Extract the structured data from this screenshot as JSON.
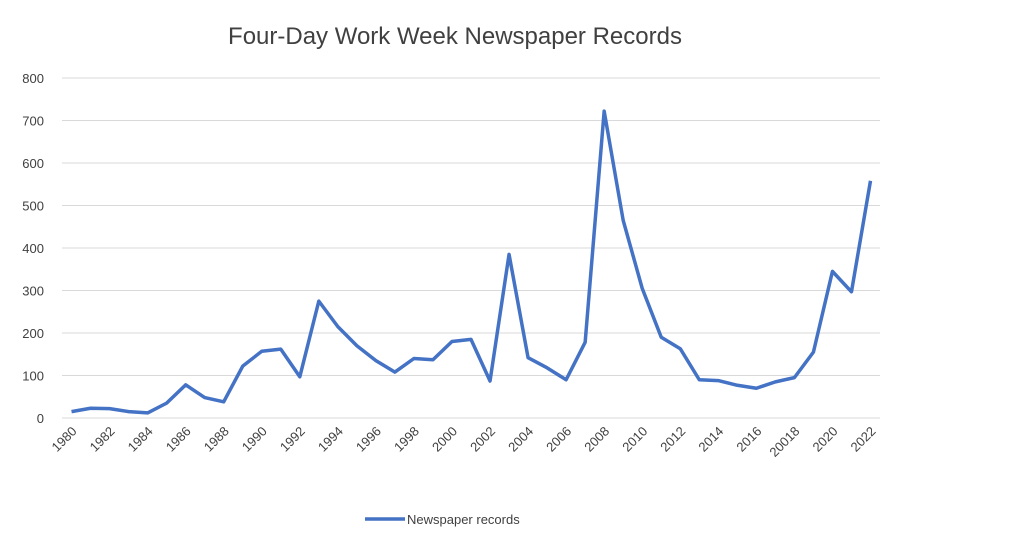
{
  "chart_data": {
    "type": "line",
    "title": "Four-Day Work Week Newspaper Records",
    "categories": [
      "1980",
      null,
      "1982",
      null,
      "1984",
      null,
      "1986",
      null,
      "1988",
      null,
      "1990",
      null,
      "1992",
      null,
      "1994",
      null,
      "1996",
      null,
      "1998",
      null,
      "2000",
      null,
      "2002",
      null,
      "2004",
      null,
      "2006",
      null,
      "2008",
      null,
      "2010",
      null,
      "2012",
      null,
      "2014",
      null,
      "2016",
      null,
      "20018",
      null,
      "2020",
      null,
      "2022"
    ],
    "series": [
      {
        "name": "Newspaper records",
        "color": "#4472c4",
        "values": [
          15,
          23,
          22,
          15,
          12,
          35,
          78,
          48,
          38,
          122,
          157,
          162,
          97,
          275,
          215,
          170,
          135,
          108,
          140,
          137,
          180,
          185,
          87,
          385,
          142,
          118,
          90,
          178,
          722,
          465,
          305,
          190,
          163,
          90,
          88,
          77,
          70,
          85,
          95,
          155,
          345,
          297,
          558
        ]
      }
    ],
    "ylim": [
      0,
      800
    ],
    "yticks": [
      0,
      100,
      200,
      300,
      400,
      500,
      600,
      700,
      800
    ],
    "grid": true,
    "legend": "bottom"
  }
}
